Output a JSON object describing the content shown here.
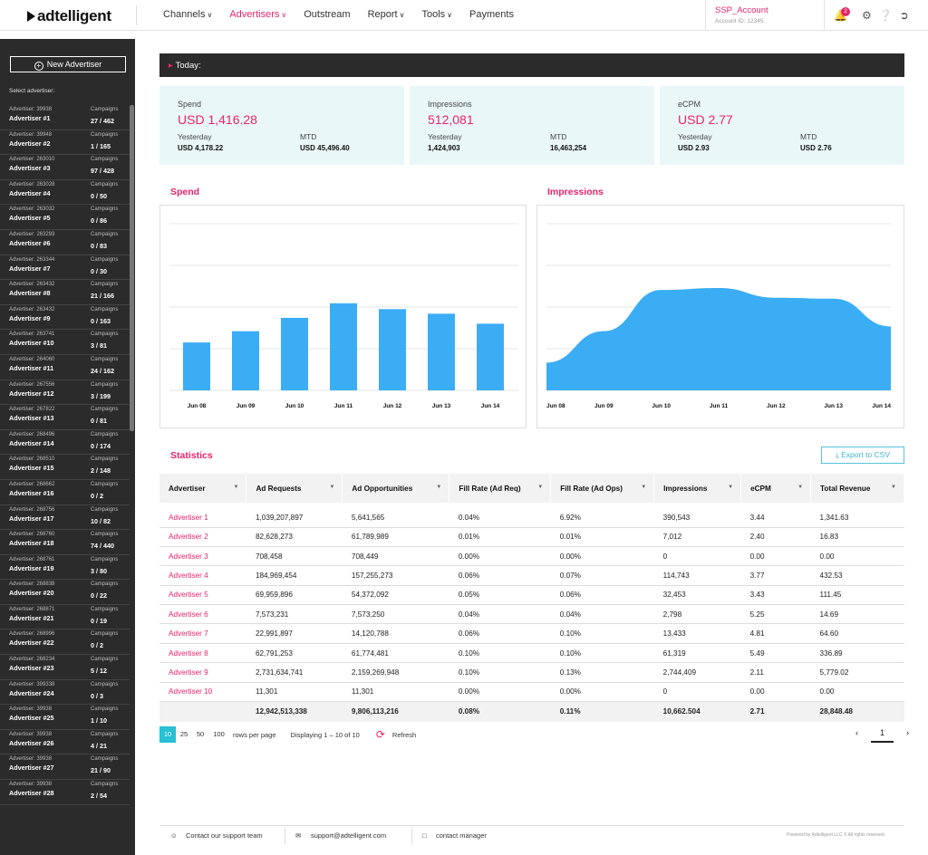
{
  "brand": {
    "logo_text": "adtelligent"
  },
  "nav": {
    "items": [
      {
        "label": "Channels",
        "caret": true,
        "active": false
      },
      {
        "label": "Advertisers",
        "caret": true,
        "active": true
      },
      {
        "label": "Outstream",
        "caret": false,
        "active": false
      },
      {
        "label": "Report",
        "caret": true,
        "active": false
      },
      {
        "label": "Tools",
        "caret": true,
        "active": false
      },
      {
        "label": "Payments",
        "caret": false,
        "active": false
      }
    ]
  },
  "account": {
    "name": "SSP_Account",
    "id_text": "Account ID: 12345"
  },
  "header_icons": {
    "notification_count": "2",
    "icons": [
      "bell-icon",
      "gear-icon",
      "help-icon",
      "logout-icon"
    ]
  },
  "sidebar": {
    "new_button": "New Advertiser",
    "select_label": "Select advertiser:",
    "campaigns_label": "Campaigns",
    "advertisers": [
      {
        "id": "Advertiser: 39938",
        "name": "Advertiser #1",
        "campaigns": "27 / 462"
      },
      {
        "id": "Advertiser: 39948",
        "name": "Advertiser #2",
        "campaigns": "1 / 165"
      },
      {
        "id": "Advertiser: 263010",
        "name": "Advertiser #3",
        "campaigns": "97 / 428"
      },
      {
        "id": "Advertiser: 263028",
        "name": "Advertiser #4",
        "campaigns": "0 / 50"
      },
      {
        "id": "Advertiser: 263032",
        "name": "Advertiser #5",
        "campaigns": "0 / 86"
      },
      {
        "id": "Advertiser: 263293",
        "name": "Advertiser #6",
        "campaigns": "0 / 83"
      },
      {
        "id": "Advertiser: 263344",
        "name": "Advertiser #7",
        "campaigns": "0 / 30"
      },
      {
        "id": "Advertiser: 263432",
        "name": "Advertiser #8",
        "campaigns": "21 / 166"
      },
      {
        "id": "Advertiser: 263432",
        "name": "Advertiser #9",
        "campaigns": "0 / 163"
      },
      {
        "id": "Advertiser: 263741",
        "name": "Advertiser #10",
        "campaigns": "3 / 81"
      },
      {
        "id": "Advertiser: 264060",
        "name": "Advertiser #11",
        "campaigns": "24 / 162"
      },
      {
        "id": "Advertiser: 267556",
        "name": "Advertiser #12",
        "campaigns": "3 / 199"
      },
      {
        "id": "Advertiser: 267822",
        "name": "Advertiser #13",
        "campaigns": "0 / 81"
      },
      {
        "id": "Advertiser: 268496",
        "name": "Advertiser #14",
        "campaigns": "0 / 174"
      },
      {
        "id": "Advertiser: 268510",
        "name": "Advertiser #15",
        "campaigns": "2 / 148"
      },
      {
        "id": "Advertiser: 268662",
        "name": "Advertiser #16",
        "campaigns": "0 / 2"
      },
      {
        "id": "Advertiser: 268756",
        "name": "Advertiser #17",
        "campaigns": "10 / 82"
      },
      {
        "id": "Advertiser: 268760",
        "name": "Advertiser #18",
        "campaigns": "74 / 440"
      },
      {
        "id": "Advertiser: 268761",
        "name": "Advertiser #19",
        "campaigns": "3 / 80"
      },
      {
        "id": "Advertiser: 268838",
        "name": "Advertiser #20",
        "campaigns": "0 / 22"
      },
      {
        "id": "Advertiser: 268871",
        "name": "Advertiser #21",
        "campaigns": "0 / 19"
      },
      {
        "id": "Advertiser: 268996",
        "name": "Advertiser #22",
        "campaigns": "0 / 2"
      },
      {
        "id": "Advertiser: 268234",
        "name": "Advertiser #23",
        "campaigns": "5 / 12"
      },
      {
        "id": "Advertiser: 399338",
        "name": "Advertiser #24",
        "campaigns": "0 / 3"
      },
      {
        "id": "Advertiser: 39938",
        "name": "Advertiser #25",
        "campaigns": "1 / 10"
      },
      {
        "id": "Advertiser: 39938",
        "name": "Advertiser #26",
        "campaigns": "4 / 21"
      },
      {
        "id": "Advertiser: 39938",
        "name": "Advertiser #27",
        "campaigns": "21 / 90"
      },
      {
        "id": "Advertiser: 39938",
        "name": "Advertiser #28",
        "campaigns": "2 / 54"
      }
    ]
  },
  "today": {
    "label": "Today:"
  },
  "cards": [
    {
      "label": "Spend",
      "value": "USD 1,416.28",
      "yesterday_label": "Yesterday",
      "yesterday": "USD 4,178.22",
      "mtd_label": "MTD",
      "mtd": "USD 45,496.40"
    },
    {
      "label": "Impressions",
      "value": "512,081",
      "yesterday_label": "Yesterday",
      "yesterday": "1,424,903",
      "mtd_label": "MTD",
      "mtd": "16,463,254"
    },
    {
      "label": "eCPM",
      "value": "USD 2.77",
      "yesterday_label": "Yesterday",
      "yesterday": "USD 2.93",
      "mtd_label": "MTD",
      "mtd": "USD 2.76"
    }
  ],
  "chart_data": [
    {
      "type": "bar",
      "title": "Spend",
      "categories": [
        "Jun 08",
        "Jun 09",
        "Jun 10",
        "Jun 11",
        "Jun 12",
        "Jun 13",
        "Jun 14"
      ],
      "values": [
        1150,
        1420,
        1740,
        2090,
        1950,
        1840,
        1600
      ],
      "ylim": [
        0,
        4000
      ],
      "color": "#3badf5",
      "grid": true
    },
    {
      "type": "area",
      "title": "Impressions",
      "categories": [
        "Jun 08",
        "Jun 09",
        "Jun 10",
        "Jun 11",
        "Jun 12",
        "Jun 13",
        "Jun 14"
      ],
      "values": [
        300000,
        640000,
        1085000,
        1105000,
        1000000,
        990000,
        690000
      ],
      "ylim": [
        0,
        1800000
      ],
      "color": "#3badf5",
      "grid": true
    }
  ],
  "statistics": {
    "title": "Statistics",
    "export_label": "Export to CSV",
    "columns": [
      "Advertiser",
      "Ad Requests",
      "Ad Opportunities",
      "Fill Rate (Ad Req)",
      "Fill Rate (Ad Ops)",
      "Impressions",
      "eCPM",
      "Total Revenue"
    ],
    "rows": [
      [
        "Advertiser 1",
        "1,039,207,897",
        "5,641,565",
        "0.04%",
        "6.92%",
        "390,543",
        "3.44",
        "1,341.63"
      ],
      [
        "Advertiser 2",
        "82,628,273",
        "61,789,989",
        "0.01%",
        "0.01%",
        "7,012",
        "2.40",
        "16.83"
      ],
      [
        "Advertiser 3",
        "708,458",
        "708,449",
        "0.00%",
        "0.00%",
        "0",
        "0.00",
        "0.00"
      ],
      [
        "Advertiser 4",
        "184,969,454",
        "157,255,273",
        "0.06%",
        "0.07%",
        "114,743",
        "3.77",
        "432.53"
      ],
      [
        "Advertiser 5",
        "69,959,896",
        "54,372,092",
        "0.05%",
        "0.06%",
        "32,453",
        "3.43",
        "111.45"
      ],
      [
        "Advertiser 6",
        "7,573,231",
        "7,573,250",
        "0.04%",
        "0.04%",
        "2,798",
        "5.25",
        "14.69"
      ],
      [
        "Advertiser 7",
        "22,991,897",
        "14,120,788",
        "0.06%",
        "0.10%",
        "13,433",
        "4.81",
        "64.60"
      ],
      [
        "Advertiser 8",
        "62,791,253",
        "61,774,481",
        "0.10%",
        "0.10%",
        "61,319",
        "5.49",
        "336.89"
      ],
      [
        "Advertiser 9",
        "2,731,634,741",
        "2,159,269,948",
        "0.10%",
        "0.13%",
        "2,744,409",
        "2.11",
        "5,779.02"
      ],
      [
        "Advertiser 10",
        "11,301",
        "11,301",
        "0.00%",
        "0.00%",
        "0",
        "0.00",
        "0.00"
      ]
    ],
    "totals": [
      "",
      "12,942,513,338",
      "9,806,113,216",
      "0.08%",
      "0.11%",
      "10,662.504",
      "2.71",
      "28,848.48"
    ]
  },
  "pagination": {
    "sizes": [
      "10",
      "25",
      "50",
      "100"
    ],
    "per_page_label": "rows per page",
    "displaying": "Displaying 1 – 10 of 10",
    "refresh_label": "Refresh",
    "current_page": "1"
  },
  "footer": {
    "support": "Contact our support team",
    "email": "support@adtelligent.com",
    "manager": "contact manager",
    "copyright": "Powered by Adtelligent LLC © All rights reserved."
  }
}
